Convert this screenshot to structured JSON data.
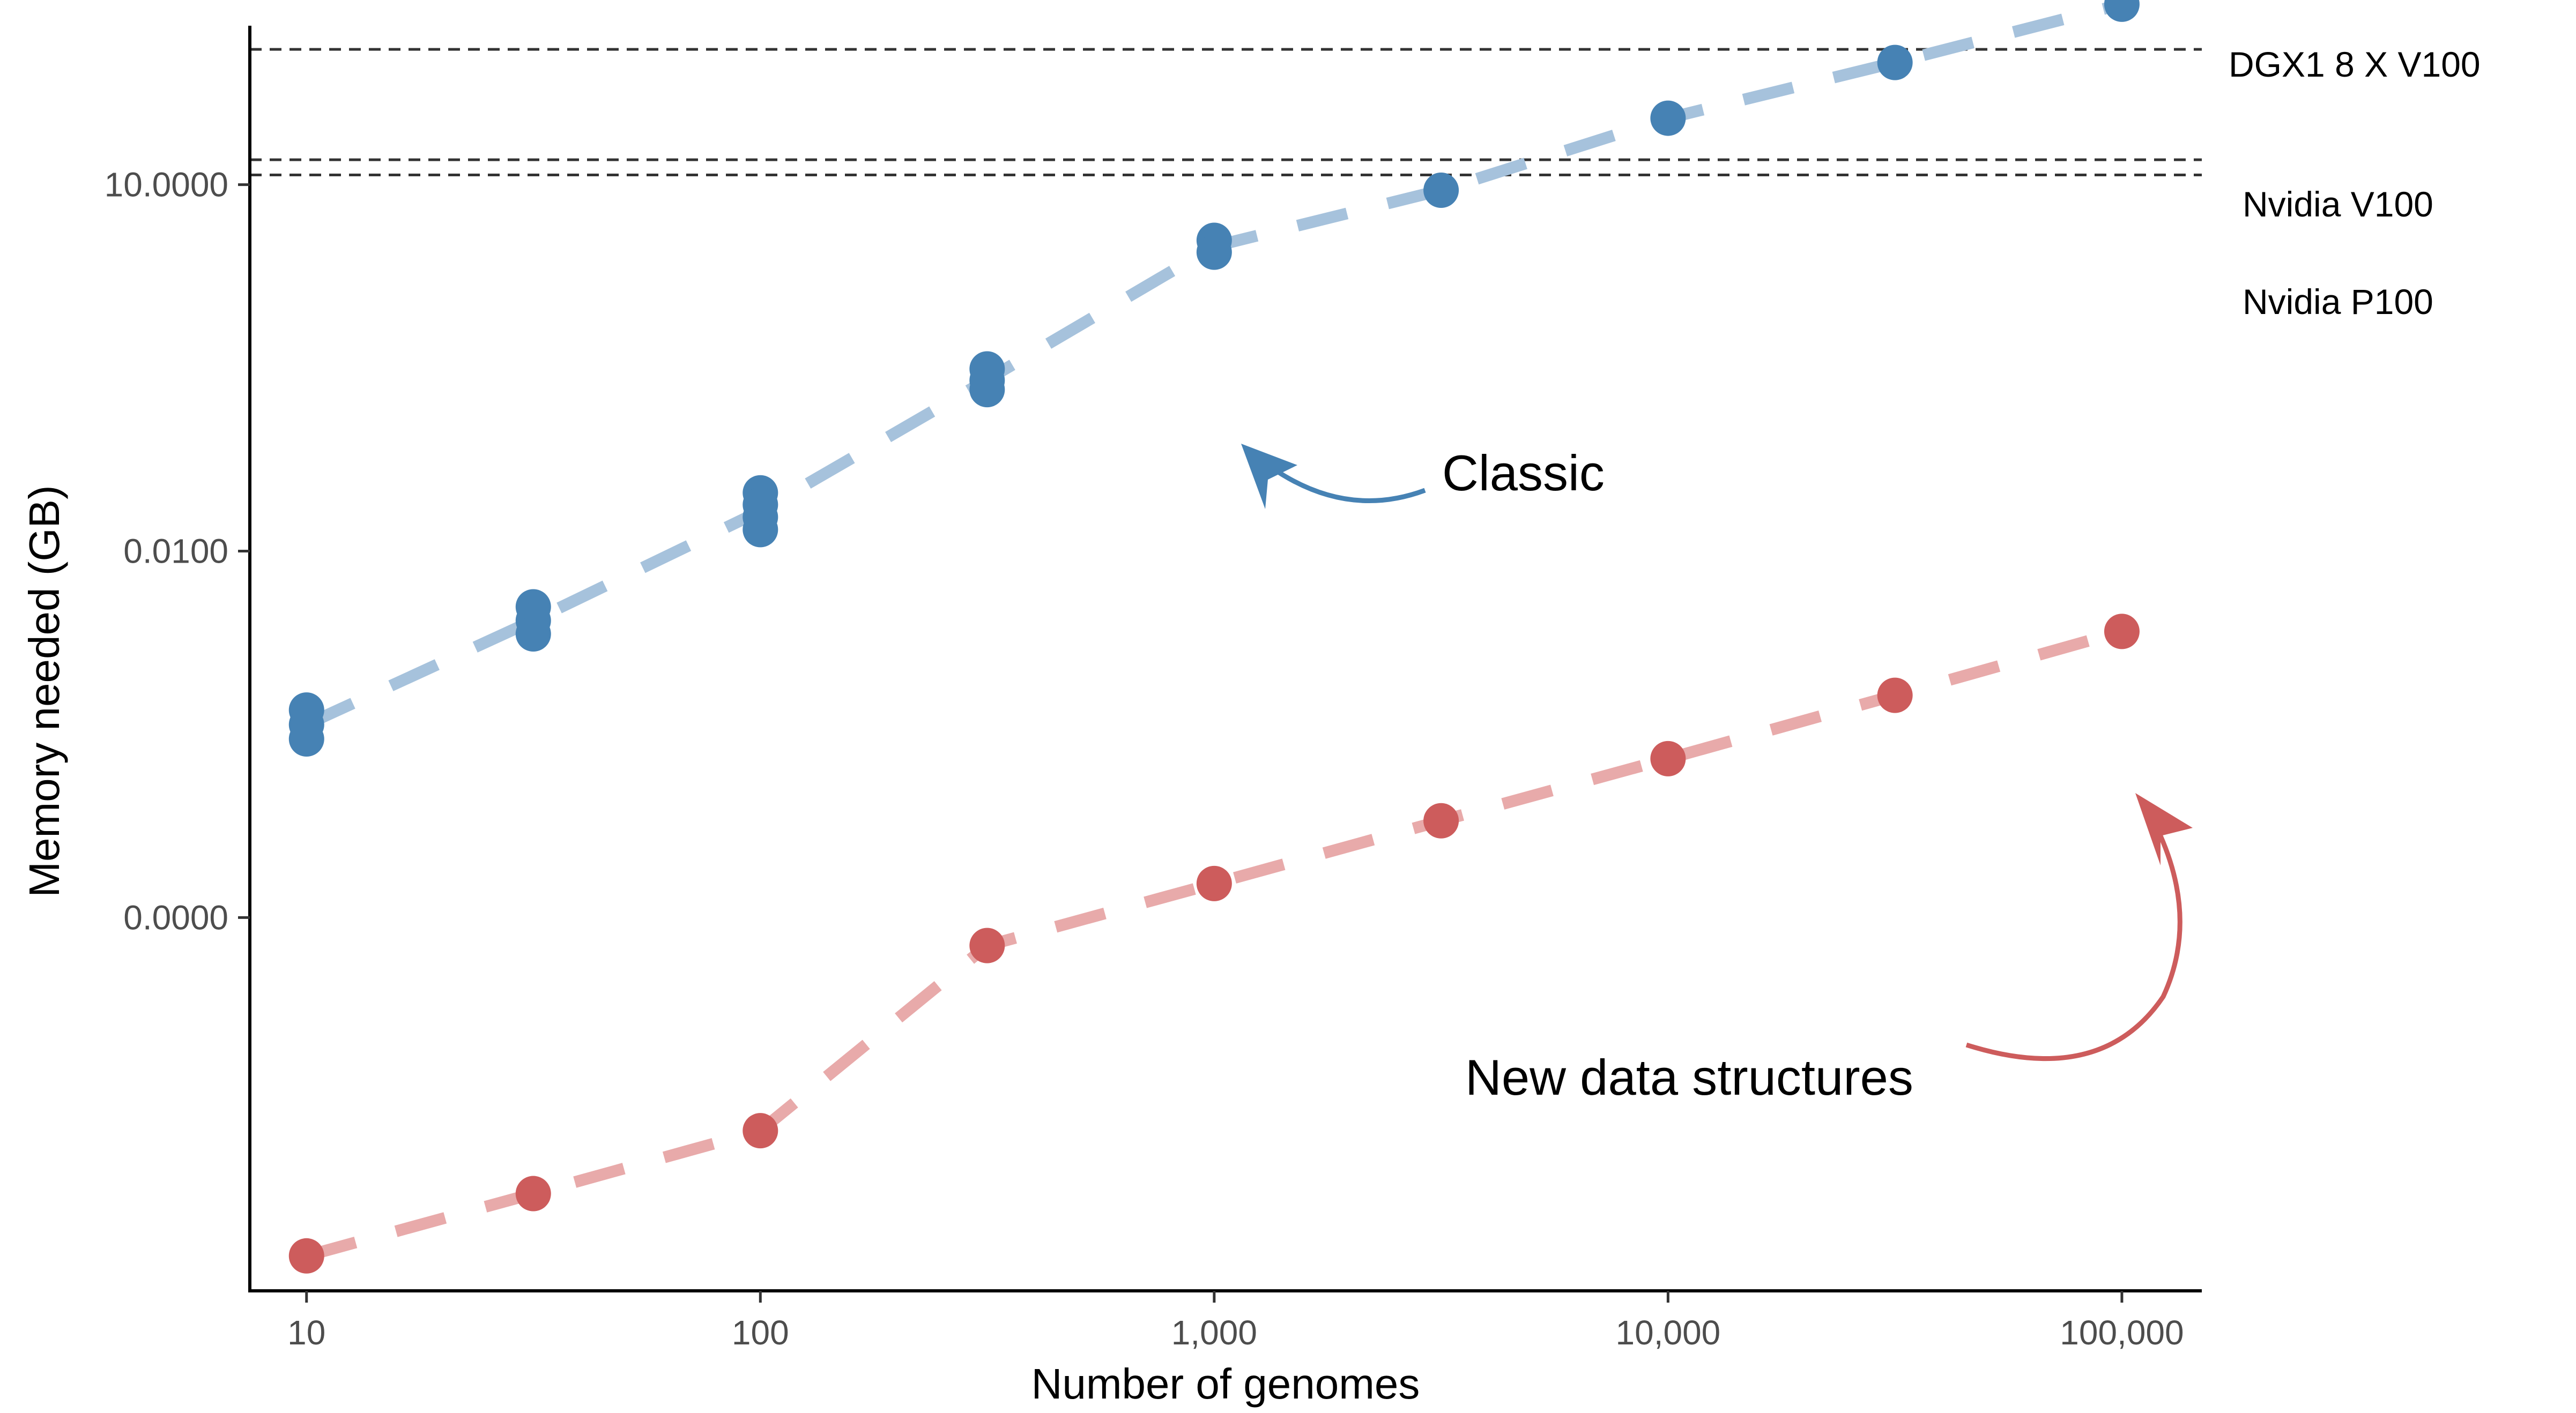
{
  "chart_data": {
    "type": "scatter",
    "title": "",
    "xlabel": "Number of genomes",
    "ylabel": "Memory needed (GB)",
    "x_scale": "log10",
    "y_scale": "log10",
    "xlim": [
      7.5,
      150000
    ],
    "ylim": [
      8.8e-09,
      200
    ],
    "x_ticks": [
      10,
      100,
      1000,
      10000,
      100000
    ],
    "x_tick_labels": [
      "10",
      "100",
      "1,000",
      "10,000",
      "100,000"
    ],
    "y_ticks": [
      1e-05,
      0.01,
      10
    ],
    "y_tick_labels": [
      "0.0000",
      "0.0100",
      "10.0000"
    ],
    "grid": false,
    "series": [
      {
        "color": "#4682b4",
        "line_color": "#a6c2dc",
        "points": [
          {
            "x": 10,
            "y": 0.0005
          },
          {
            "x": 10,
            "y": 0.00038
          },
          {
            "x": 10,
            "y": 0.00029
          },
          {
            "x": 31.6,
            "y": 0.0035
          },
          {
            "x": 31.6,
            "y": 0.0027
          },
          {
            "x": 31.6,
            "y": 0.0021
          },
          {
            "x": 100,
            "y": 0.03
          },
          {
            "x": 100,
            "y": 0.024
          },
          {
            "x": 100,
            "y": 0.019
          },
          {
            "x": 100,
            "y": 0.015
          },
          {
            "x": 316,
            "y": 0.31
          },
          {
            "x": 316,
            "y": 0.25
          },
          {
            "x": 316,
            "y": 0.21
          },
          {
            "x": 1000,
            "y": 3.5
          },
          {
            "x": 1000,
            "y": 2.8
          },
          {
            "x": 3162,
            "y": 9.0
          },
          {
            "x": 10000,
            "y": 35
          },
          {
            "x": 31623,
            "y": 100
          },
          {
            "x": 100000,
            "y": 300
          }
        ]
      },
      {
        "color": "#cd5c5c",
        "line_color": "#e8aaaa",
        "points": [
          {
            "x": 10,
            "y": 1.7e-08
          },
          {
            "x": 31.6,
            "y": 5.5e-08
          },
          {
            "x": 100,
            "y": 1.8e-07
          },
          {
            "x": 316,
            "y": 5.9e-06
          },
          {
            "x": 1000,
            "y": 1.9e-05
          },
          {
            "x": 3162,
            "y": 6.2e-05
          },
          {
            "x": 10000,
            "y": 0.0002
          },
          {
            "x": 31623,
            "y": 0.00066
          },
          {
            "x": 100000,
            "y": 0.0022
          }
        ]
      }
    ],
    "reference_lines": [
      {
        "y": 128,
        "label": "DGX1 8 X V100"
      },
      {
        "y": 16,
        "label": "Nvidia V100"
      },
      {
        "y": 12,
        "label": "Nvidia P100"
      }
    ],
    "annotations": [
      {
        "text": "Classic",
        "color": "#4682b4"
      },
      {
        "text": "New data structures",
        "color": "#cd5c5c"
      }
    ]
  }
}
